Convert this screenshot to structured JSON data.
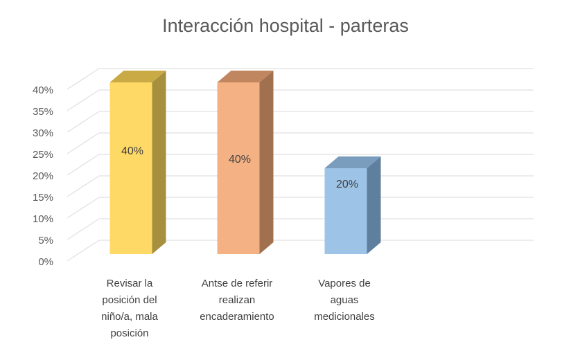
{
  "chart_data": {
    "type": "bar",
    "variant": "3d-column",
    "title": "Interacción hospital - parteras",
    "xlabel": "",
    "ylabel": "",
    "categories": [
      [
        "Revisar la",
        "posición del",
        "niño/a, mala",
        "posición"
      ],
      [
        "Antse de referir",
        "realizan",
        "encaderamiento"
      ],
      [
        "Vapores de",
        "aguas",
        "medicionales"
      ]
    ],
    "values": [
      40,
      40,
      20
    ],
    "data_labels": [
      "40%",
      "40%",
      "20%"
    ],
    "y_ticks": [
      "0%",
      "5%",
      "10%",
      "15%",
      "20%",
      "25%",
      "30%",
      "35%",
      "40%"
    ],
    "ylim": [
      0,
      40
    ],
    "grid": true,
    "legend": "none",
    "colors": [
      {
        "front": "#FFD966",
        "side": "#A6903D",
        "top": "#C9AA44"
      },
      {
        "front": "#F4B183",
        "side": "#A0704F",
        "top": "#C08660"
      },
      {
        "front": "#9DC3E6",
        "side": "#5F7F9E",
        "top": "#7A9CBD"
      }
    ]
  }
}
